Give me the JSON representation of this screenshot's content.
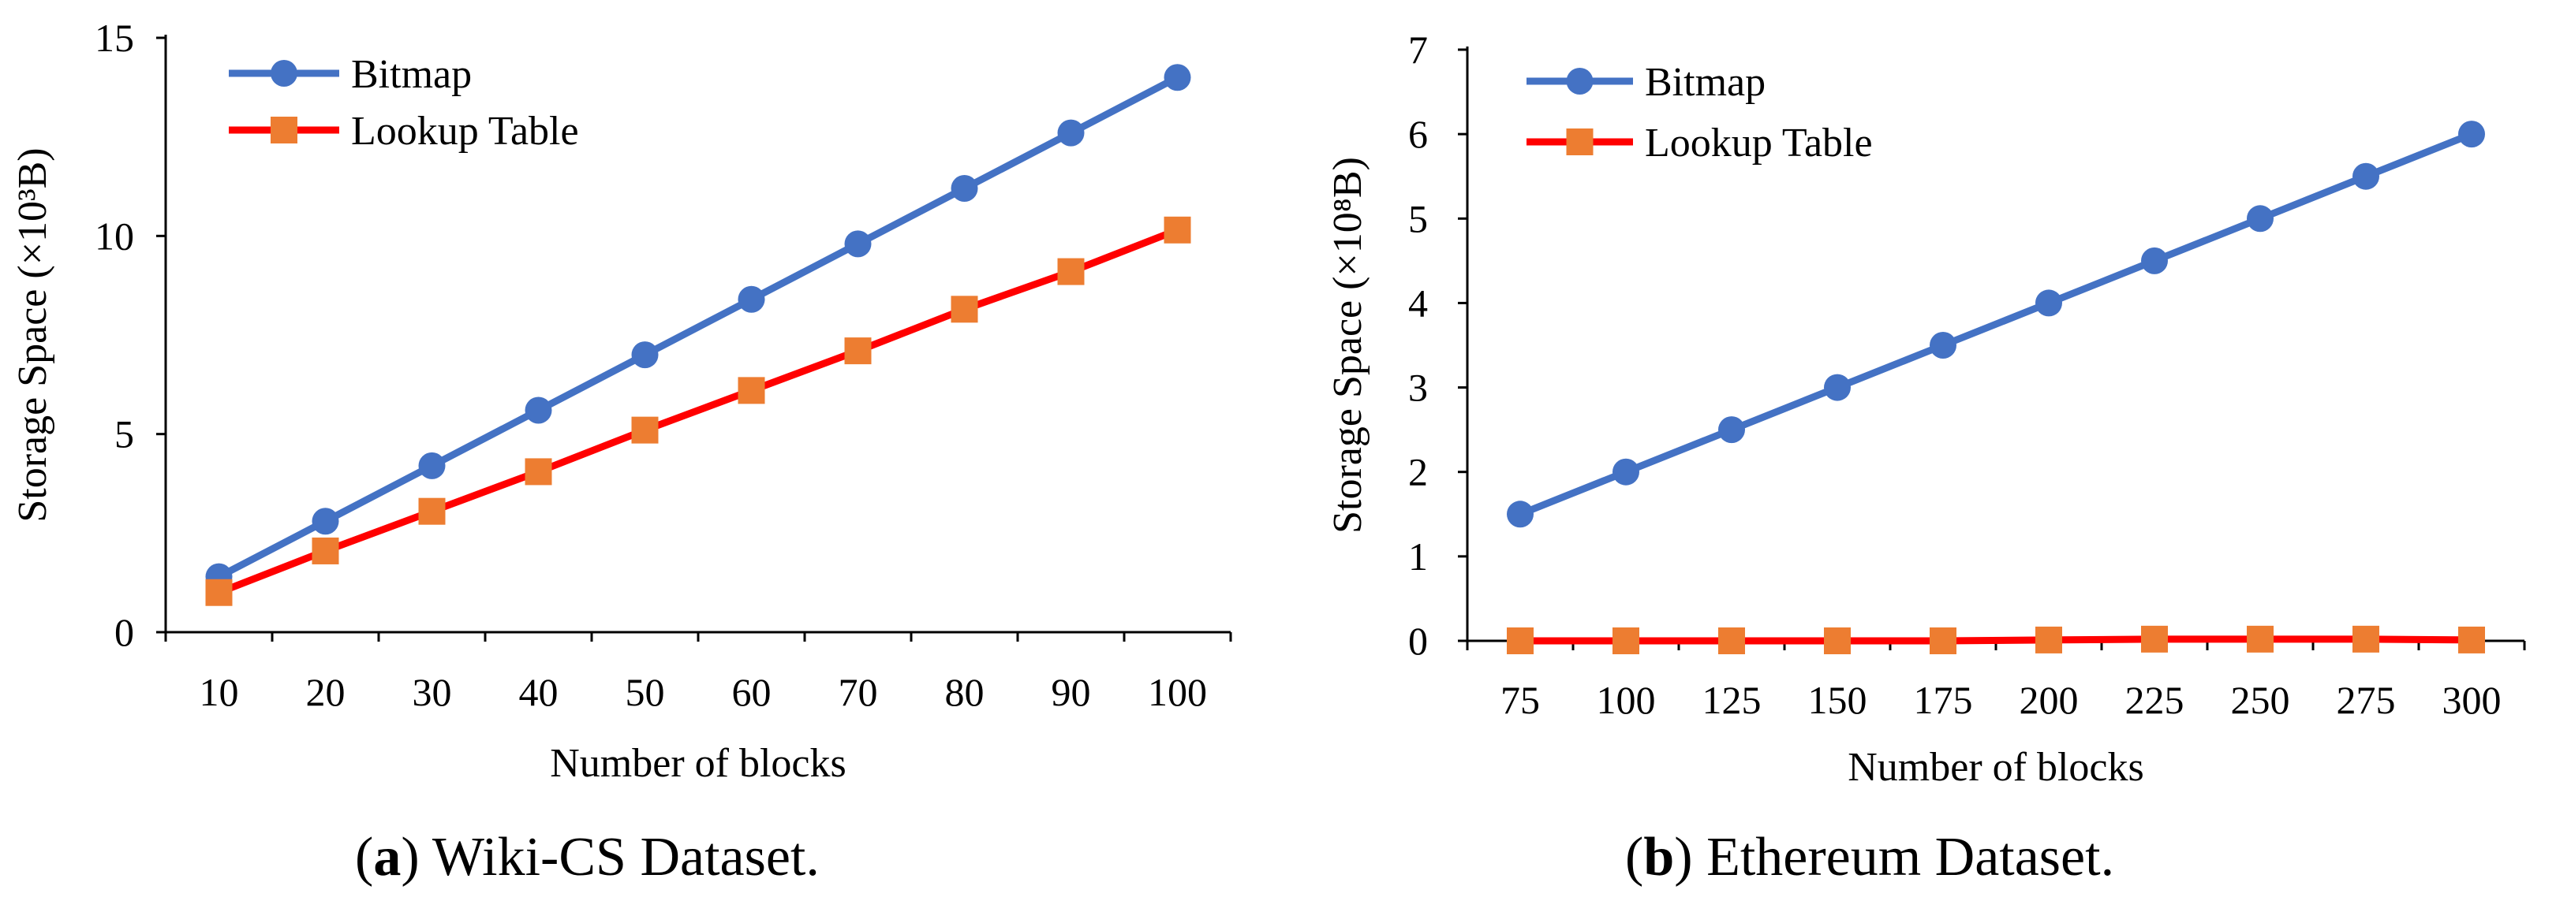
{
  "chart_data": [
    {
      "type": "line",
      "caption_letter": "a",
      "caption_text": "Wiki-CS Dataset.",
      "xlabel": "Number of blocks",
      "ylabel": "Storage Space (×10³B)",
      "categories": [
        "10",
        "20",
        "30",
        "40",
        "50",
        "60",
        "70",
        "80",
        "90",
        "100"
      ],
      "yticks": [
        "0",
        "5",
        "10",
        "15"
      ],
      "ylim": [
        0,
        15
      ],
      "grid": false,
      "legend_position": "top-left",
      "series": [
        {
          "name": "Bitmap",
          "color": "#4472C4",
          "marker": "circle",
          "values": [
            1.4,
            2.8,
            4.2,
            5.6,
            7.0,
            8.4,
            9.8,
            11.2,
            12.6,
            14.0
          ]
        },
        {
          "name": "Lookup Table",
          "color": "#FF0000",
          "marker_color": "#ED7D31",
          "marker": "square",
          "values": [
            1.0,
            2.05,
            3.05,
            4.05,
            5.1,
            6.1,
            7.1,
            8.15,
            9.1,
            10.15
          ]
        }
      ]
    },
    {
      "type": "line",
      "caption_letter": "b",
      "caption_text": "Ethereum Dataset.",
      "xlabel": "Number of blocks",
      "ylabel": "Storage Space (×10⁸B)",
      "categories": [
        "75",
        "100",
        "125",
        "150",
        "175",
        "200",
        "225",
        "250",
        "275",
        "300"
      ],
      "yticks": [
        "0",
        "1",
        "2",
        "3",
        "4",
        "5",
        "6",
        "7"
      ],
      "ylim": [
        0,
        7
      ],
      "grid": false,
      "legend_position": "top-left",
      "series": [
        {
          "name": "Bitmap",
          "color": "#4472C4",
          "marker": "circle",
          "values": [
            1.5,
            2.0,
            2.5,
            3.0,
            3.5,
            4.0,
            4.5,
            5.0,
            5.5,
            6.0
          ]
        },
        {
          "name": "Lookup Table",
          "color": "#FF0000",
          "marker_color": "#ED7D31",
          "marker": "square",
          "values": [
            0.0,
            0.0,
            0.0,
            0.0,
            0.0,
            0.01,
            0.02,
            0.02,
            0.02,
            0.01
          ]
        }
      ]
    }
  ]
}
